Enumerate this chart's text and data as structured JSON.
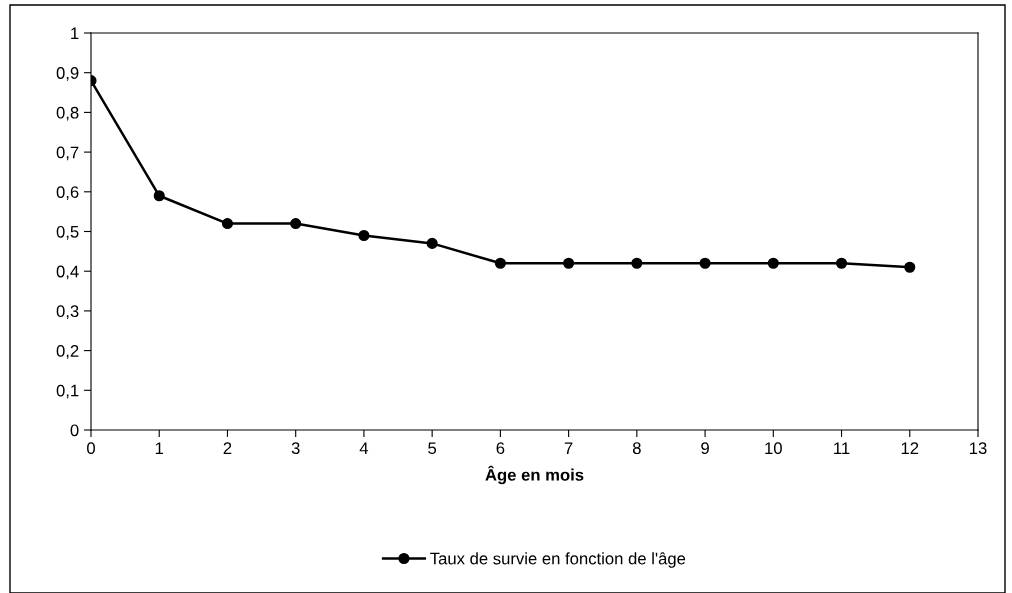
{
  "chart_data": {
    "type": "line",
    "xlabel": "Âge en mois",
    "x": [
      0,
      1,
      2,
      3,
      4,
      5,
      6,
      7,
      8,
      9,
      10,
      11,
      12
    ],
    "series": [
      {
        "name": "Taux de survie en fonction de l'âge",
        "color": "#000000",
        "values": [
          0.88,
          0.59,
          0.52,
          0.52,
          0.49,
          0.47,
          0.42,
          0.42,
          0.42,
          0.42,
          0.42,
          0.42,
          0.41
        ]
      }
    ],
    "xlim": [
      0,
      13
    ],
    "xticks": [
      0,
      1,
      2,
      3,
      4,
      5,
      6,
      7,
      8,
      9,
      10,
      11,
      12,
      13
    ],
    "ylim": [
      0,
      1
    ],
    "yticks": [
      0,
      {
        "value": 0.1,
        "label": "0,1"
      },
      {
        "value": 0.2,
        "label": "0,2"
      },
      {
        "value": 0.3,
        "label": "0,3"
      },
      {
        "value": 0.4,
        "label": "0,4"
      },
      {
        "value": 0.5,
        "label": "0,5"
      },
      {
        "value": 0.6,
        "label": "0,6"
      },
      {
        "value": 0.7,
        "label": "0,7"
      },
      {
        "value": 0.8,
        "label": "0,8"
      },
      {
        "value": 0.9,
        "label": "0,9"
      },
      1
    ],
    "grid": false,
    "legend": "bottom",
    "marker": "circle",
    "line_style": "solid"
  }
}
